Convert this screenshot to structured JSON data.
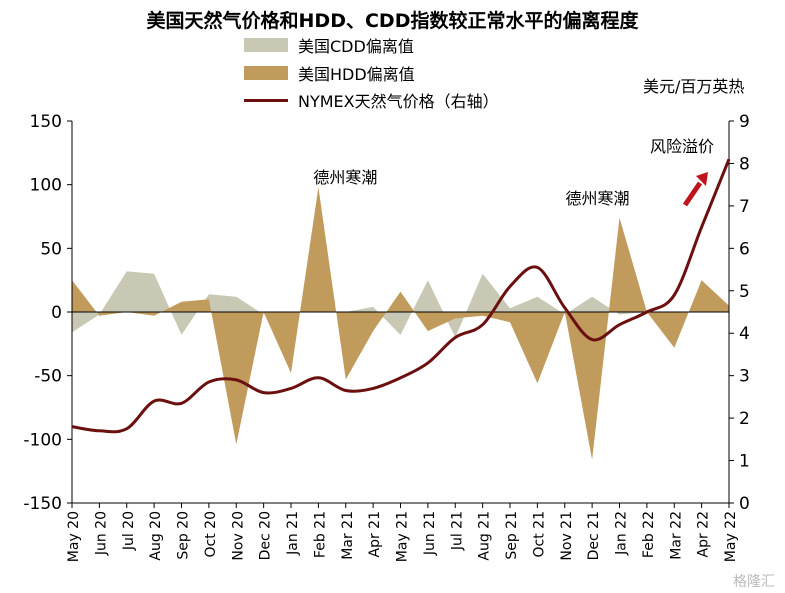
{
  "chart_data": {
    "type": "area",
    "title": "美国天然气价格和HDD、CDD指数较正常水平的偏离程度",
    "categories": [
      "May 20",
      "Jun 20",
      "Jul 20",
      "Aug 20",
      "Sep 20",
      "Oct 20",
      "Nov 20",
      "Dec 20",
      "Jan 21",
      "Feb 21",
      "Mar 21",
      "Apr 21",
      "May 21",
      "Jun 21",
      "Jul 21",
      "Aug 21",
      "Sep 21",
      "Oct 21",
      "Nov 21",
      "Dec 21",
      "Jan 22",
      "Feb 22",
      "Mar 22",
      "Apr 22",
      "May 22"
    ],
    "y_left": {
      "ylim": [
        -150,
        150
      ],
      "ticks": [
        150,
        100,
        50,
        0,
        -50,
        -100,
        -150
      ]
    },
    "y_right": {
      "label": "美元/百万英热",
      "ylim": [
        0,
        9
      ],
      "ticks": [
        9,
        8,
        7,
        6,
        5,
        4,
        3,
        2,
        1,
        0
      ]
    },
    "series": [
      {
        "name": "美国CDD偏离值",
        "type": "area",
        "axis": "left",
        "color": "#c8c8b4",
        "values": [
          -16,
          -2,
          32,
          30,
          -18,
          14,
          12,
          -2,
          0,
          0,
          0,
          4,
          -18,
          25,
          -20,
          30,
          3,
          12,
          -2,
          12,
          -2,
          0,
          0,
          0,
          4
        ]
      },
      {
        "name": "美国HDD偏离值",
        "type": "area",
        "axis": "left",
        "color": "#c09b5c",
        "values": [
          25,
          -3,
          0,
          -3,
          8,
          10,
          -104,
          0,
          -48,
          98,
          -53,
          -15,
          16,
          -15,
          -5,
          -3,
          -8,
          -56,
          0,
          -116,
          74,
          0,
          -28,
          25,
          5
        ]
      },
      {
        "name": "NYMEX天然气价格（右轴）",
        "type": "line",
        "axis": "right",
        "color": "#6b0f0f",
        "values": [
          1.8,
          1.7,
          1.75,
          2.4,
          2.35,
          2.85,
          2.9,
          2.6,
          2.7,
          2.95,
          2.65,
          2.7,
          2.95,
          3.3,
          3.9,
          4.2,
          5.1,
          5.55,
          4.6,
          3.85,
          4.2,
          4.5,
          4.9,
          6.5,
          8.1
        ]
      }
    ],
    "annotations": [
      {
        "text": "德州寒潮",
        "at": "Feb 21"
      },
      {
        "text": "德州寒潮",
        "at": "Jan 22"
      },
      {
        "text": "风险溢价",
        "at": "May 22"
      }
    ],
    "grid": false,
    "legend": "top-center"
  },
  "colors": {
    "cdd": "#c8c8b4",
    "hdd": "#c09b5c",
    "price": "#6b0f0f",
    "arrow": "#c0141c"
  },
  "watermark": "格隆汇"
}
